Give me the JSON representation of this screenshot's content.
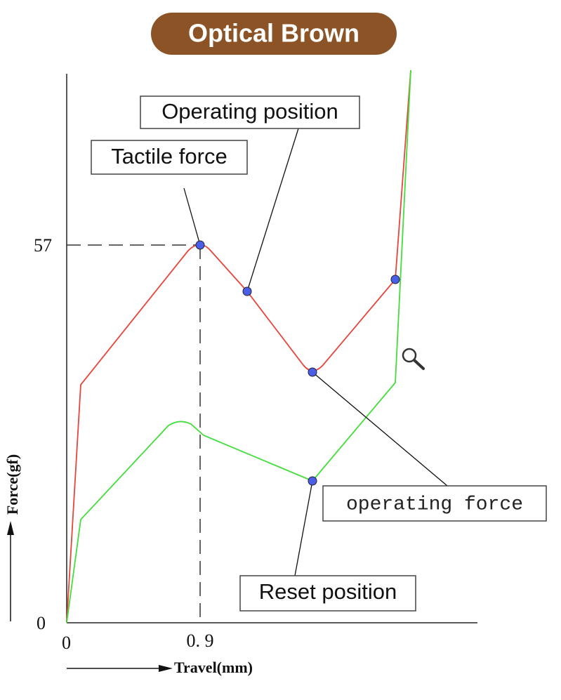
{
  "title": "Optical Brown",
  "labels": {
    "operating_position": "Operating position",
    "tactile_force": "Tactile force",
    "operating_force": "operating force",
    "reset_position": "Reset position"
  },
  "axes": {
    "y_ticks": [
      "57",
      "0"
    ],
    "x_ticks": [
      "0",
      "0. 9"
    ],
    "y_label": "Force(gf)",
    "x_label": "Travel(mm)"
  }
}
